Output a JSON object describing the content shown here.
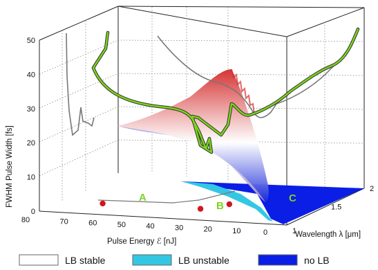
{
  "chart_data": {
    "type": "3d-surface",
    "axes": {
      "y": {
        "label": "FWHM Pulse Width [fs]",
        "range": [
          0,
          50
        ],
        "ticks": [
          0,
          10,
          20,
          30,
          40,
          50
        ],
        "tick_labels": [
          "0",
          "10",
          "20",
          "30",
          "40",
          "50"
        ]
      },
      "x": {
        "label": "Pulse Energy ℰ [nJ]",
        "range": [
          0,
          80
        ],
        "ticks": [
          80,
          70,
          60,
          50,
          40,
          30,
          20,
          10,
          0
        ],
        "tick_labels": [
          "80",
          "70",
          "60",
          "50",
          "40",
          "30",
          "20",
          "10",
          "0"
        ]
      },
      "z": {
        "label": "Wavelength λ [μm]",
        "range": [
          1,
          2
        ],
        "ticks": [
          1,
          1.5,
          2
        ],
        "tick_labels": [
          "1",
          "1.5",
          "2"
        ]
      }
    },
    "region_labels": [
      "A",
      "B",
      "C"
    ],
    "points": [
      {
        "energy": 58,
        "wavelength": 1.0,
        "width": 0
      },
      {
        "energy": 24,
        "wavelength": 1.0,
        "width": 0
      },
      {
        "energy": 18,
        "wavelength": 1.15,
        "width": 0
      }
    ],
    "legend": {
      "placement": "bottom",
      "entries": [
        {
          "label": "LB stable",
          "color": "#ffffff"
        },
        {
          "label": "LB unstable",
          "color": "#33c7e4"
        },
        {
          "label": "no LB",
          "color": "#0a1ee6"
        }
      ]
    },
    "colors": {
      "surface_high": "#d42a2a",
      "surface_mid": "#ffffff",
      "surface_low": "#1a2ad8",
      "path_line": "#7bd41a",
      "projection_line": "#777777",
      "point": "#d0161e"
    },
    "grid": true
  }
}
